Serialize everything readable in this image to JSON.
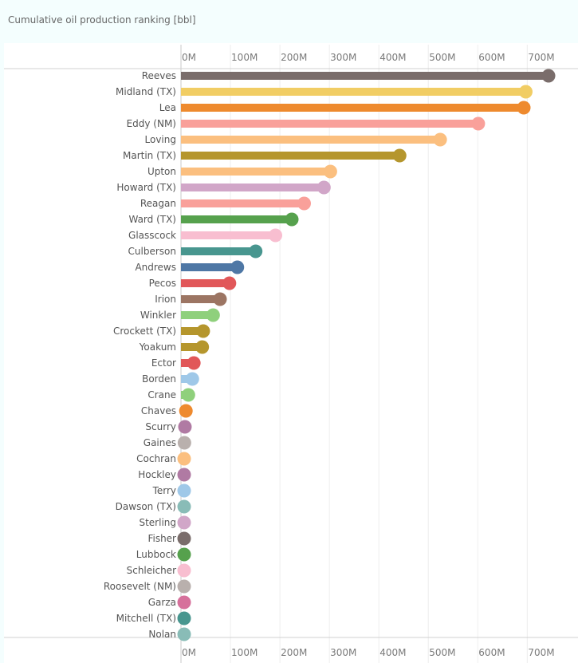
{
  "title": "Cumulative oil production ranking [bbl]",
  "chart_data": {
    "type": "bar",
    "style": "lollipop",
    "orientation": "horizontal",
    "title": "Cumulative oil production ranking [bbl]",
    "xlim": [
      0,
      780000000
    ],
    "ticks": [
      {
        "value": 0,
        "label": "0M"
      },
      {
        "value": 100000000,
        "label": "100M"
      },
      {
        "value": 200000000,
        "label": "200M"
      },
      {
        "value": 300000000,
        "label": "300M"
      },
      {
        "value": 400000000,
        "label": "400M"
      },
      {
        "value": 500000000,
        "label": "500M"
      },
      {
        "value": 600000000,
        "label": "600M"
      },
      {
        "value": 700000000,
        "label": "700M"
      }
    ],
    "grid": "vertical",
    "axis_position": "top and bottom",
    "categories": [
      "Reeves",
      "Midland (TX)",
      "Lea",
      "Eddy (NM)",
      "Loving",
      "Martin (TX)",
      "Upton",
      "Howard (TX)",
      "Reagan",
      "Ward (TX)",
      "Glasscock",
      "Culberson",
      "Andrews",
      "Pecos",
      "Irion",
      "Winkler",
      "Crockett (TX)",
      "Yoakum",
      "Ector",
      "Borden",
      "Crane",
      "Chaves",
      "Scurry",
      "Gaines",
      "Cochran",
      "Hockley",
      "Terry",
      "Dawson (TX)",
      "Sterling",
      "Fisher",
      "Lubbock",
      "Schleicher",
      "Roosevelt (NM)",
      "Garza",
      "Mitchell (TX)",
      "Nolan"
    ],
    "values": [
      743000000,
      697000000,
      693000000,
      601000000,
      524000000,
      442000000,
      302000000,
      289000000,
      249000000,
      224000000,
      191000000,
      151000000,
      114000000,
      98000000,
      79000000,
      65000000,
      45000000,
      43000000,
      26000000,
      23000000,
      15000000,
      10000000,
      8000000,
      7000000,
      6000000,
      6000000,
      5000000,
      6000000,
      5000000,
      5000000,
      5000000,
      4000000,
      4000000,
      3000000,
      3000000,
      2000000
    ],
    "colors": [
      "#7a6d6b",
      "#f1cd64",
      "#ee8a2e",
      "#f9a09a",
      "#fbbf7f",
      "#b5962d",
      "#fbbf7f",
      "#d1a6c8",
      "#f9a09a",
      "#56a14d",
      "#f8bed0",
      "#48968f",
      "#4e77a5",
      "#e15759",
      "#9c7563",
      "#8fd07c",
      "#b5962d",
      "#b5962d",
      "#e15759",
      "#9fc8e8",
      "#8fd07c",
      "#ee8a2e",
      "#b07aa3",
      "#b9b0ad",
      "#fbbf7f",
      "#b07aa3",
      "#9fc8e8",
      "#89bcb7",
      "#d1a6c8",
      "#7a6d6b",
      "#56a14d",
      "#f8bed0",
      "#b9b0ad",
      "#d6709b",
      "#48968f",
      "#89bcb7"
    ]
  }
}
